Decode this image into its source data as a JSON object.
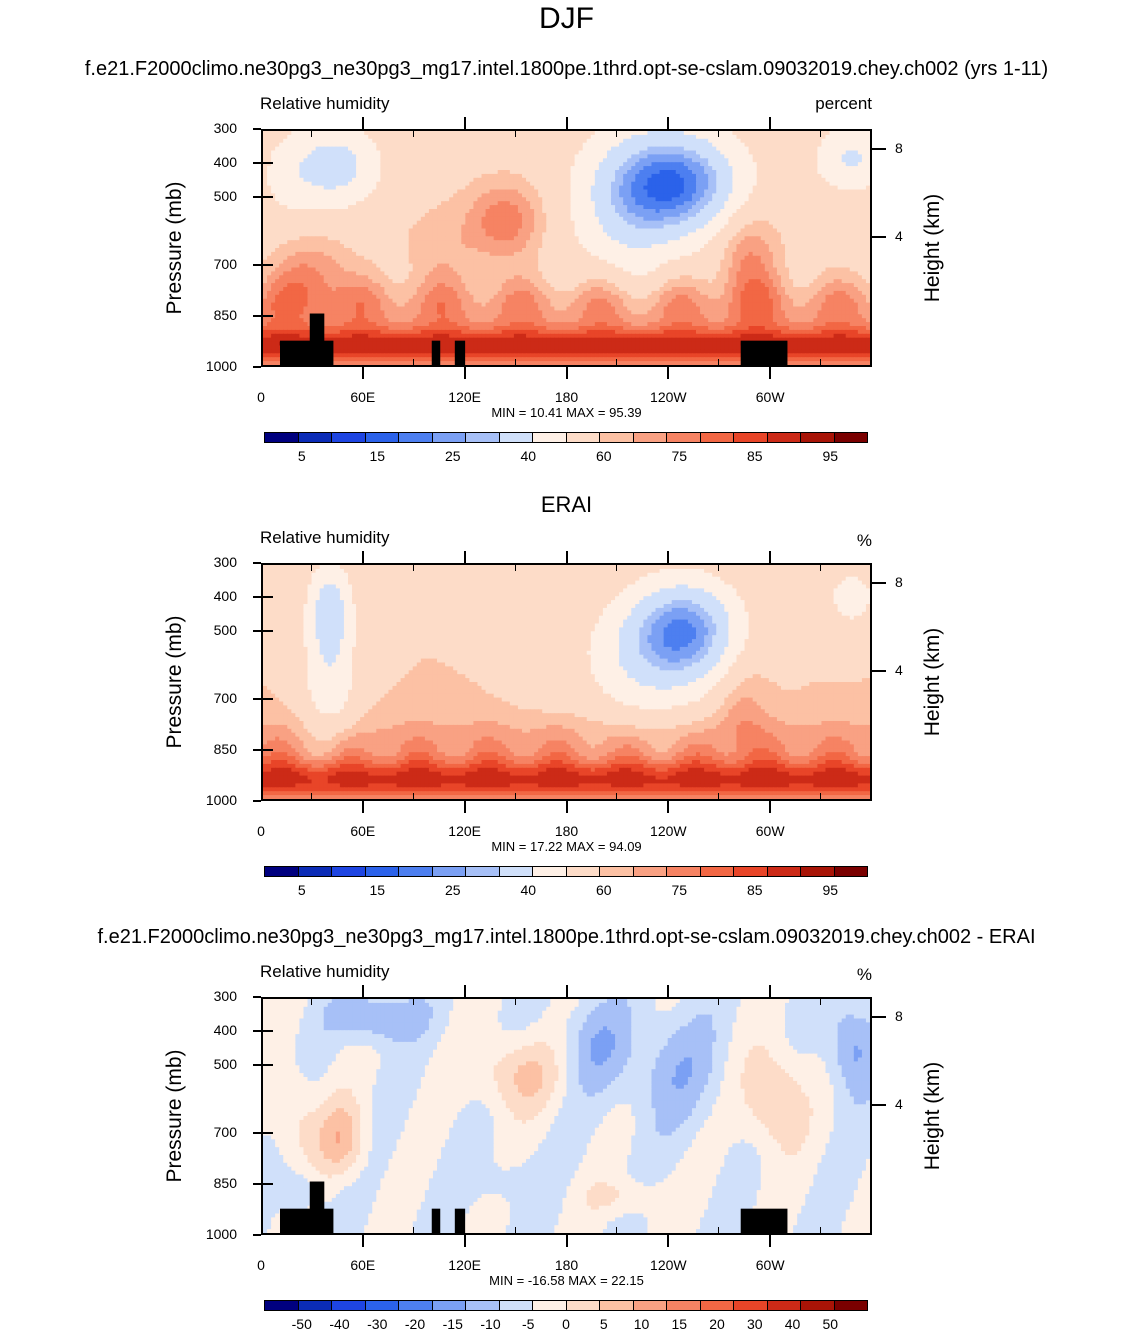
{
  "title": "DJF",
  "panels": [
    {
      "title": "f.e21.F2000climo.ne30pg3_ne30pg3_mg17.intel.1800pe.1thrd.opt-se-cslam.09032019.chey.ch002 (yrs 1-11)",
      "left_string": "Relative humidity",
      "right_string": "percent",
      "ylabel": "Pressure (mb)",
      "ylabel_right": "Height (km)",
      "stats": "MIN =  10.41  MAX =  95.39",
      "kind": "model"
    },
    {
      "title": "ERAI",
      "left_string": "Relative humidity",
      "right_string": "%",
      "ylabel": "Pressure (mb)",
      "ylabel_right": "Height (km)",
      "stats": "MIN =  17.22  MAX =  94.09",
      "kind": "obs"
    },
    {
      "title": "f.e21.F2000climo.ne30pg3_ne30pg3_mg17.intel.1800pe.1thrd.opt-se-cslam.09032019.chey.ch002 - ERAI",
      "left_string": "Relative humidity",
      "right_string": "%",
      "ylabel": "Pressure (mb)",
      "ylabel_right": "Height (km)",
      "stats": "MIN = -16.58  MAX =  22.15",
      "kind": "diff"
    }
  ],
  "chart_data": [
    {
      "type": "heatmap",
      "title": "f.e21.F2000climo.ne30pg3_ne30pg3_mg17.intel.1800pe.1thrd.opt-se-cslam.09032019.chey.ch002 (yrs 1-11)",
      "xlabel": "",
      "ylabel": "Pressure (mb)",
      "ylabel_right": "Height (km)",
      "x_ticks": [
        "0",
        "60E",
        "120E",
        "180",
        "120W",
        "60W"
      ],
      "x_tick_values": [
        0,
        60,
        120,
        180,
        240,
        300
      ],
      "xlim": [
        0,
        360
      ],
      "y_ticks": [
        "300",
        "400",
        "500",
        "700",
        "850",
        "1000"
      ],
      "y_tick_values": [
        300,
        400,
        500,
        700,
        850,
        1000
      ],
      "ylim": [
        1000,
        300
      ],
      "y_scale": "log",
      "y2_ticks": [
        "8",
        "4"
      ],
      "y2_tick_values": [
        8,
        4
      ],
      "min": 10.41,
      "max": 95.39,
      "colorbar_levels": [
        "5",
        "15",
        "25",
        "40",
        "60",
        "75",
        "85",
        "95"
      ],
      "colors": [
        "#00007f",
        "#0b2cb7",
        "#1e45e2",
        "#2b62ea",
        "#4d7ff0",
        "#7ba0f4",
        "#a7c0f7",
        "#d0e0fa",
        "#fef0e6",
        "#fddcc8",
        "#fcc1a4",
        "#f9a183",
        "#f68363",
        "#f26744",
        "#e84528",
        "#cc2a17",
        "#a81407",
        "#7a0000"
      ]
    },
    {
      "type": "heatmap",
      "title": "ERAI",
      "xlabel": "",
      "ylabel": "Pressure (mb)",
      "ylabel_right": "Height (km)",
      "x_ticks": [
        "0",
        "60E",
        "120E",
        "180",
        "120W",
        "60W"
      ],
      "x_tick_values": [
        0,
        60,
        120,
        180,
        240,
        300
      ],
      "xlim": [
        0,
        360
      ],
      "y_ticks": [
        "300",
        "400",
        "500",
        "700",
        "850",
        "1000"
      ],
      "y_tick_values": [
        300,
        400,
        500,
        700,
        850,
        1000
      ],
      "ylim": [
        1000,
        300
      ],
      "y_scale": "log",
      "y2_ticks": [
        "8",
        "4"
      ],
      "y2_tick_values": [
        8,
        4
      ],
      "min": 17.22,
      "max": 94.09,
      "colorbar_levels": [
        "5",
        "15",
        "25",
        "40",
        "60",
        "75",
        "85",
        "95"
      ],
      "colors": [
        "#00007f",
        "#0b2cb7",
        "#1e45e2",
        "#2b62ea",
        "#4d7ff0",
        "#7ba0f4",
        "#a7c0f7",
        "#d0e0fa",
        "#fef0e6",
        "#fddcc8",
        "#fcc1a4",
        "#f9a183",
        "#f68363",
        "#f26744",
        "#e84528",
        "#cc2a17",
        "#a81407",
        "#7a0000"
      ]
    },
    {
      "type": "heatmap",
      "title": "f.e21.F2000climo.ne30pg3_ne30pg3_mg17.intel.1800pe.1thrd.opt-se-cslam.09032019.chey.ch002 - ERAI",
      "xlabel": "",
      "ylabel": "Pressure (mb)",
      "ylabel_right": "Height (km)",
      "x_ticks": [
        "0",
        "60E",
        "120E",
        "180",
        "120W",
        "60W"
      ],
      "x_tick_values": [
        0,
        60,
        120,
        180,
        240,
        300
      ],
      "xlim": [
        0,
        360
      ],
      "y_ticks": [
        "300",
        "400",
        "500",
        "700",
        "850",
        "1000"
      ],
      "y_tick_values": [
        300,
        400,
        500,
        700,
        850,
        1000
      ],
      "ylim": [
        1000,
        300
      ],
      "y_scale": "log",
      "y2_ticks": [
        "8",
        "4"
      ],
      "y2_tick_values": [
        8,
        4
      ],
      "min": -16.58,
      "max": 22.15,
      "colorbar_levels": [
        "-50",
        "-40",
        "-30",
        "-20",
        "-15",
        "-10",
        "-5",
        "0",
        "5",
        "10",
        "15",
        "20",
        "30",
        "40",
        "50"
      ],
      "colors": [
        "#00007f",
        "#0b2cb7",
        "#1e45e2",
        "#2b62ea",
        "#4d7ff0",
        "#7ba0f4",
        "#a7c0f7",
        "#d0e0fa",
        "#fef0e6",
        "#fddcc8",
        "#fcc1a4",
        "#f9a183",
        "#f68363",
        "#f26744",
        "#e84528",
        "#cc2a17",
        "#a81407",
        "#7a0000"
      ]
    }
  ]
}
